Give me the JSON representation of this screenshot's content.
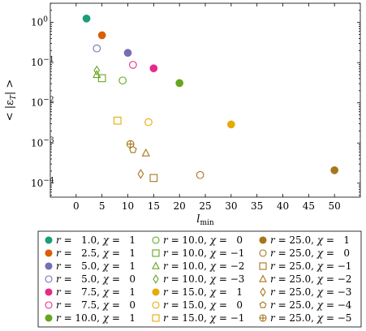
{
  "chart_data": {
    "type": "scatter",
    "xlabel": "l_min",
    "ylabel": "< |ε_T| >",
    "x_scale": "linear",
    "y_scale": "log",
    "xlim": [
      -5,
      55
    ],
    "ylim": [
      4.5e-05,
      3
    ],
    "grid": false,
    "legend_placement": "below",
    "x_ticks": [
      "0",
      "5",
      "10",
      "15",
      "20",
      "25",
      "30",
      "35",
      "40",
      "45",
      "50"
    ],
    "y_ticks": [
      "10^0",
      "10^-1",
      "10^-2",
      "10^-3",
      "10^-4"
    ],
    "colors": {
      "teal": "#1b9e77",
      "orange": "#d95f02",
      "purple": "#7570b3",
      "magenta": "#e7298a",
      "green": "#66a61e",
      "gold": "#e6ab02",
      "brown": "#a6761d"
    },
    "series": [
      {
        "name": "r = 1.0, χ = 1",
        "r": "1.0",
        "chi": "1",
        "color": "#1b9e77",
        "marker": "circle",
        "filled": true,
        "points": [
          {
            "x": 2,
            "y": 1.25
          }
        ]
      },
      {
        "name": "r = 2.5, χ = 1",
        "r": "2.5",
        "chi": "1",
        "color": "#d95f02",
        "marker": "circle",
        "filled": true,
        "points": [
          {
            "x": 5,
            "y": 0.48
          }
        ]
      },
      {
        "name": "r = 5.0, χ = 1",
        "r": "5.0",
        "chi": "1",
        "color": "#7570b3",
        "marker": "circle",
        "filled": true,
        "points": [
          {
            "x": 10,
            "y": 0.175
          }
        ]
      },
      {
        "name": "r = 5.0, χ = 0",
        "r": "5.0",
        "chi": "0",
        "color": "#7570b3",
        "marker": "circle",
        "filled": false,
        "points": [
          {
            "x": 4,
            "y": 0.225
          }
        ]
      },
      {
        "name": "r = 7.5, χ = 1",
        "r": "7.5",
        "chi": "1",
        "color": "#e7298a",
        "marker": "circle",
        "filled": true,
        "points": [
          {
            "x": 15,
            "y": 0.072
          }
        ]
      },
      {
        "name": "r = 7.5, χ = 0",
        "r": "7.5",
        "chi": "0",
        "color": "#e7298a",
        "marker": "circle",
        "filled": false,
        "points": [
          {
            "x": 11,
            "y": 0.088
          }
        ]
      },
      {
        "name": "r = 10.0, χ = 1",
        "r": "10.0",
        "chi": "1",
        "color": "#66a61e",
        "marker": "circle",
        "filled": true,
        "points": [
          {
            "x": 20,
            "y": 0.031
          }
        ]
      },
      {
        "name": "r = 10.0, χ = 0",
        "r": "10.0",
        "chi": "0",
        "color": "#66a61e",
        "marker": "circle",
        "filled": false,
        "points": [
          {
            "x": 9,
            "y": 0.036
          }
        ]
      },
      {
        "name": "r = 10.0, χ = −1",
        "r": "10.0",
        "chi": "−1",
        "color": "#66a61e",
        "marker": "square",
        "filled": false,
        "points": [
          {
            "x": 5,
            "y": 0.041
          }
        ]
      },
      {
        "name": "r = 10.0, χ = −2",
        "r": "10.0",
        "chi": "−2",
        "color": "#66a61e",
        "marker": "triangle",
        "filled": false,
        "points": [
          {
            "x": 4,
            "y": 0.05
          }
        ]
      },
      {
        "name": "r = 10.0, χ = −3",
        "r": "10.0",
        "chi": "−3",
        "color": "#66a61e",
        "marker": "diamond",
        "filled": false,
        "points": [
          {
            "x": 4,
            "y": 0.064
          }
        ]
      },
      {
        "name": "r = 15.0, χ = 1",
        "r": "15.0",
        "chi": "1",
        "color": "#e6ab02",
        "marker": "circle",
        "filled": true,
        "points": [
          {
            "x": 30,
            "y": 0.0029
          }
        ]
      },
      {
        "name": "r = 15.0, χ = 0",
        "r": "15.0",
        "chi": "0",
        "color": "#e6ab02",
        "marker": "circle",
        "filled": false,
        "points": [
          {
            "x": 14,
            "y": 0.0033
          }
        ]
      },
      {
        "name": "r = 15.0, χ = −1",
        "r": "15.0",
        "chi": "−1",
        "color": "#e6ab02",
        "marker": "square",
        "filled": false,
        "points": [
          {
            "x": 8,
            "y": 0.0036
          }
        ]
      },
      {
        "name": "r = 25.0, χ = 1",
        "r": "25.0",
        "chi": "1",
        "color": "#a6761d",
        "marker": "circle",
        "filled": true,
        "points": [
          {
            "x": 50,
            "y": 0.00021
          }
        ]
      },
      {
        "name": "r = 25.0, χ = 0",
        "r": "25.0",
        "chi": "0",
        "color": "#a6761d",
        "marker": "circle",
        "filled": false,
        "points": [
          {
            "x": 24,
            "y": 0.00016
          }
        ]
      },
      {
        "name": "r = 25.0, χ = −1",
        "r": "25.0",
        "chi": "−1",
        "color": "#a6761d",
        "marker": "square",
        "filled": false,
        "points": [
          {
            "x": 15,
            "y": 0.000135
          }
        ]
      },
      {
        "name": "r = 25.0, χ = −2",
        "r": "25.0",
        "chi": "−2",
        "color": "#a6761d",
        "marker": "triangle",
        "filled": false,
        "points": [
          {
            "x": 13.5,
            "y": 0.00056
          }
        ]
      },
      {
        "name": "r = 25.0, χ = −3",
        "r": "25.0",
        "chi": "−3",
        "color": "#a6761d",
        "marker": "diamond",
        "filled": false,
        "points": [
          {
            "x": 12.5,
            "y": 0.00017
          }
        ]
      },
      {
        "name": "r = 25.0, χ = −4",
        "r": "25.0",
        "chi": "−4",
        "color": "#a6761d",
        "marker": "pentagon",
        "filled": false,
        "points": [
          {
            "x": 11,
            "y": 0.00068
          }
        ]
      },
      {
        "name": "r = 25.0, χ = −5",
        "r": "25.0",
        "chi": "−5",
        "color": "#a6761d",
        "marker": "oplus",
        "filled": false,
        "points": [
          {
            "x": 10.5,
            "y": 0.00094
          }
        ]
      }
    ]
  }
}
